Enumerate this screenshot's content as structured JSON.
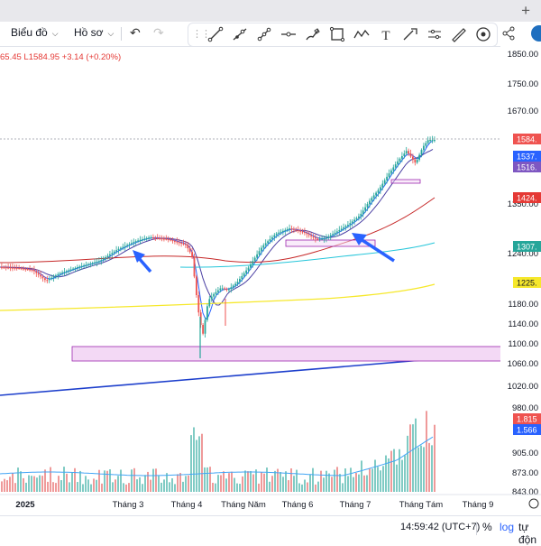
{
  "toolbar": {
    "chart_type_label": "Biểu đồ",
    "profile_label": "Hồ sơ"
  },
  "legend": {
    "text": "65.45 L1584.95 +3.14 (+0.20%)"
  },
  "price_axis": {
    "ticks": [
      "1850.00",
      "1750.00",
      "1670.00",
      "1350.00",
      "1240.00",
      "1180.00",
      "1140.00",
      "1100.00",
      "1060.00",
      "1020.00",
      "980.00",
      "905.00",
      "873.00",
      "843.00"
    ],
    "tags": [
      {
        "label": "1584.",
        "color": "#ef5350"
      },
      {
        "label": "1537.",
        "color": "#2962ff"
      },
      {
        "label": "1516.",
        "color": "#7e57c2"
      },
      {
        "label": "1424.",
        "color": "#e53935"
      },
      {
        "label": "1307.",
        "color": "#26a69a"
      },
      {
        "label": "1225.",
        "color": "#f6e82b"
      },
      {
        "label": "1.815",
        "color": "#ef5350"
      },
      {
        "label": "1.566",
        "color": "#2962ff"
      }
    ]
  },
  "time_axis": {
    "labels": [
      "2025",
      "Tháng 3",
      "Tháng 4",
      "Tháng Năm",
      "Tháng 6",
      "Tháng 7",
      "Tháng Tám",
      "Tháng 9"
    ]
  },
  "bottom_bar": {
    "clock": "14:59:42 (UTC+7)",
    "percent": "%",
    "log": "log",
    "auto": "tự độn"
  },
  "colors": {
    "up": "#26a69a",
    "down": "#ef5350",
    "ma_blue": "#2962ff",
    "ma_purple": "#4a3fa3",
    "ma_red": "#c62828",
    "ma_teal": "#26c6da",
    "ma_yellow": "#f6e82b",
    "zone_fill": "#f3d9f5",
    "zone_border": "#9c27b0",
    "arrow": "#2962ff"
  },
  "icons": {
    "undo": "undo-icon",
    "redo": "redo-icon",
    "share": "share-icon",
    "add_tab": "plus-icon"
  }
}
